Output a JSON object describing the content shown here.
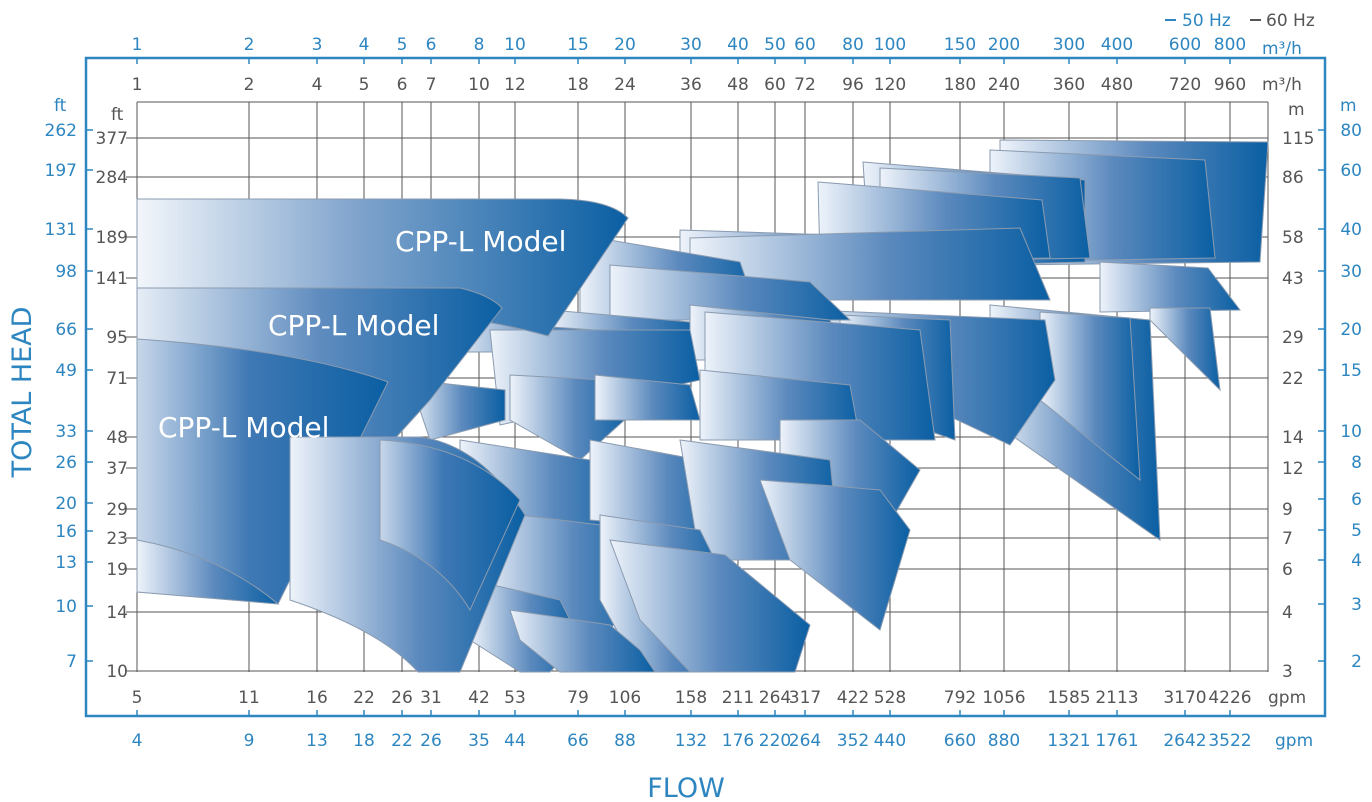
{
  "colors": {
    "blue": "#2e86c1",
    "dark": "#555555",
    "frame": "#2e86c1",
    "curve_light": "#eef3fa",
    "curve_dark": "#0a5fa3"
  },
  "legend": {
    "hz50": "50 Hz",
    "hz60": "60 Hz"
  },
  "chart_data": {
    "type": "area",
    "xlabel": "FLOW",
    "ylabel": "TOTAL HEAD",
    "x_scale": "log",
    "y_scale": "log",
    "grid": true,
    "x_axes": {
      "top_50hz": {
        "unit": "m³/h",
        "ticks": [
          "1",
          "2",
          "3",
          "4",
          "5",
          "6",
          "8",
          "10",
          "15",
          "20",
          "30",
          "40",
          "50",
          "60",
          "80",
          "100",
          "150",
          "200",
          "300",
          "400",
          "600",
          "800"
        ]
      },
      "top_60hz": {
        "unit": "m³/h",
        "ticks": [
          "1",
          "2",
          "4",
          "5",
          "6",
          "7",
          "10",
          "12",
          "18",
          "24",
          "36",
          "48",
          "60",
          "72",
          "96",
          "120",
          "180",
          "240",
          "360",
          "480",
          "720",
          "960"
        ]
      },
      "bottom_60hz": {
        "unit": "gpm",
        "ticks": [
          "5",
          "11",
          "16",
          "22",
          "26",
          "31",
          "42",
          "53",
          "79",
          "106",
          "158",
          "211",
          "264",
          "317",
          "422",
          "528",
          "792",
          "1056",
          "1585",
          "2113",
          "3170",
          "4226"
        ]
      },
      "bottom_50hz": {
        "unit": "gpm",
        "ticks": [
          "4",
          "9",
          "13",
          "18",
          "22",
          "26",
          "35",
          "44",
          "66",
          "88",
          "132",
          "176",
          "220",
          "264",
          "352",
          "440",
          "660",
          "880",
          "1321",
          "1761",
          "2642",
          "3522"
        ]
      }
    },
    "y_axes": {
      "left_outer_50hz": {
        "unit": "ft",
        "ticks": [
          "262",
          "197",
          "131",
          "98",
          "66",
          "49",
          "33",
          "26",
          "20",
          "16",
          "13",
          "10",
          "7"
        ]
      },
      "left_inner_60hz": {
        "unit": "ft",
        "ticks": [
          "377",
          "284",
          "189",
          "141",
          "95",
          "71",
          "48",
          "37",
          "29",
          "23",
          "19",
          "14",
          "10"
        ]
      },
      "right_inner_60hz": {
        "unit": "m",
        "ticks": [
          "115",
          "86",
          "58",
          "43",
          "29",
          "22",
          "14",
          "12",
          "9",
          "7",
          "6",
          "4",
          "3"
        ]
      },
      "right_outer_50hz": {
        "unit": "m",
        "ticks": [
          "80",
          "60",
          "40",
          "30",
          "20",
          "15",
          "10",
          "8",
          "6",
          "5",
          "4",
          "3",
          "2"
        ]
      }
    },
    "series": [
      {
        "name": "CPP-L Model",
        "range": "large"
      },
      {
        "name": "CPP-L Model",
        "range": "medium"
      },
      {
        "name": "CPP-L Model",
        "range": "small"
      }
    ]
  }
}
